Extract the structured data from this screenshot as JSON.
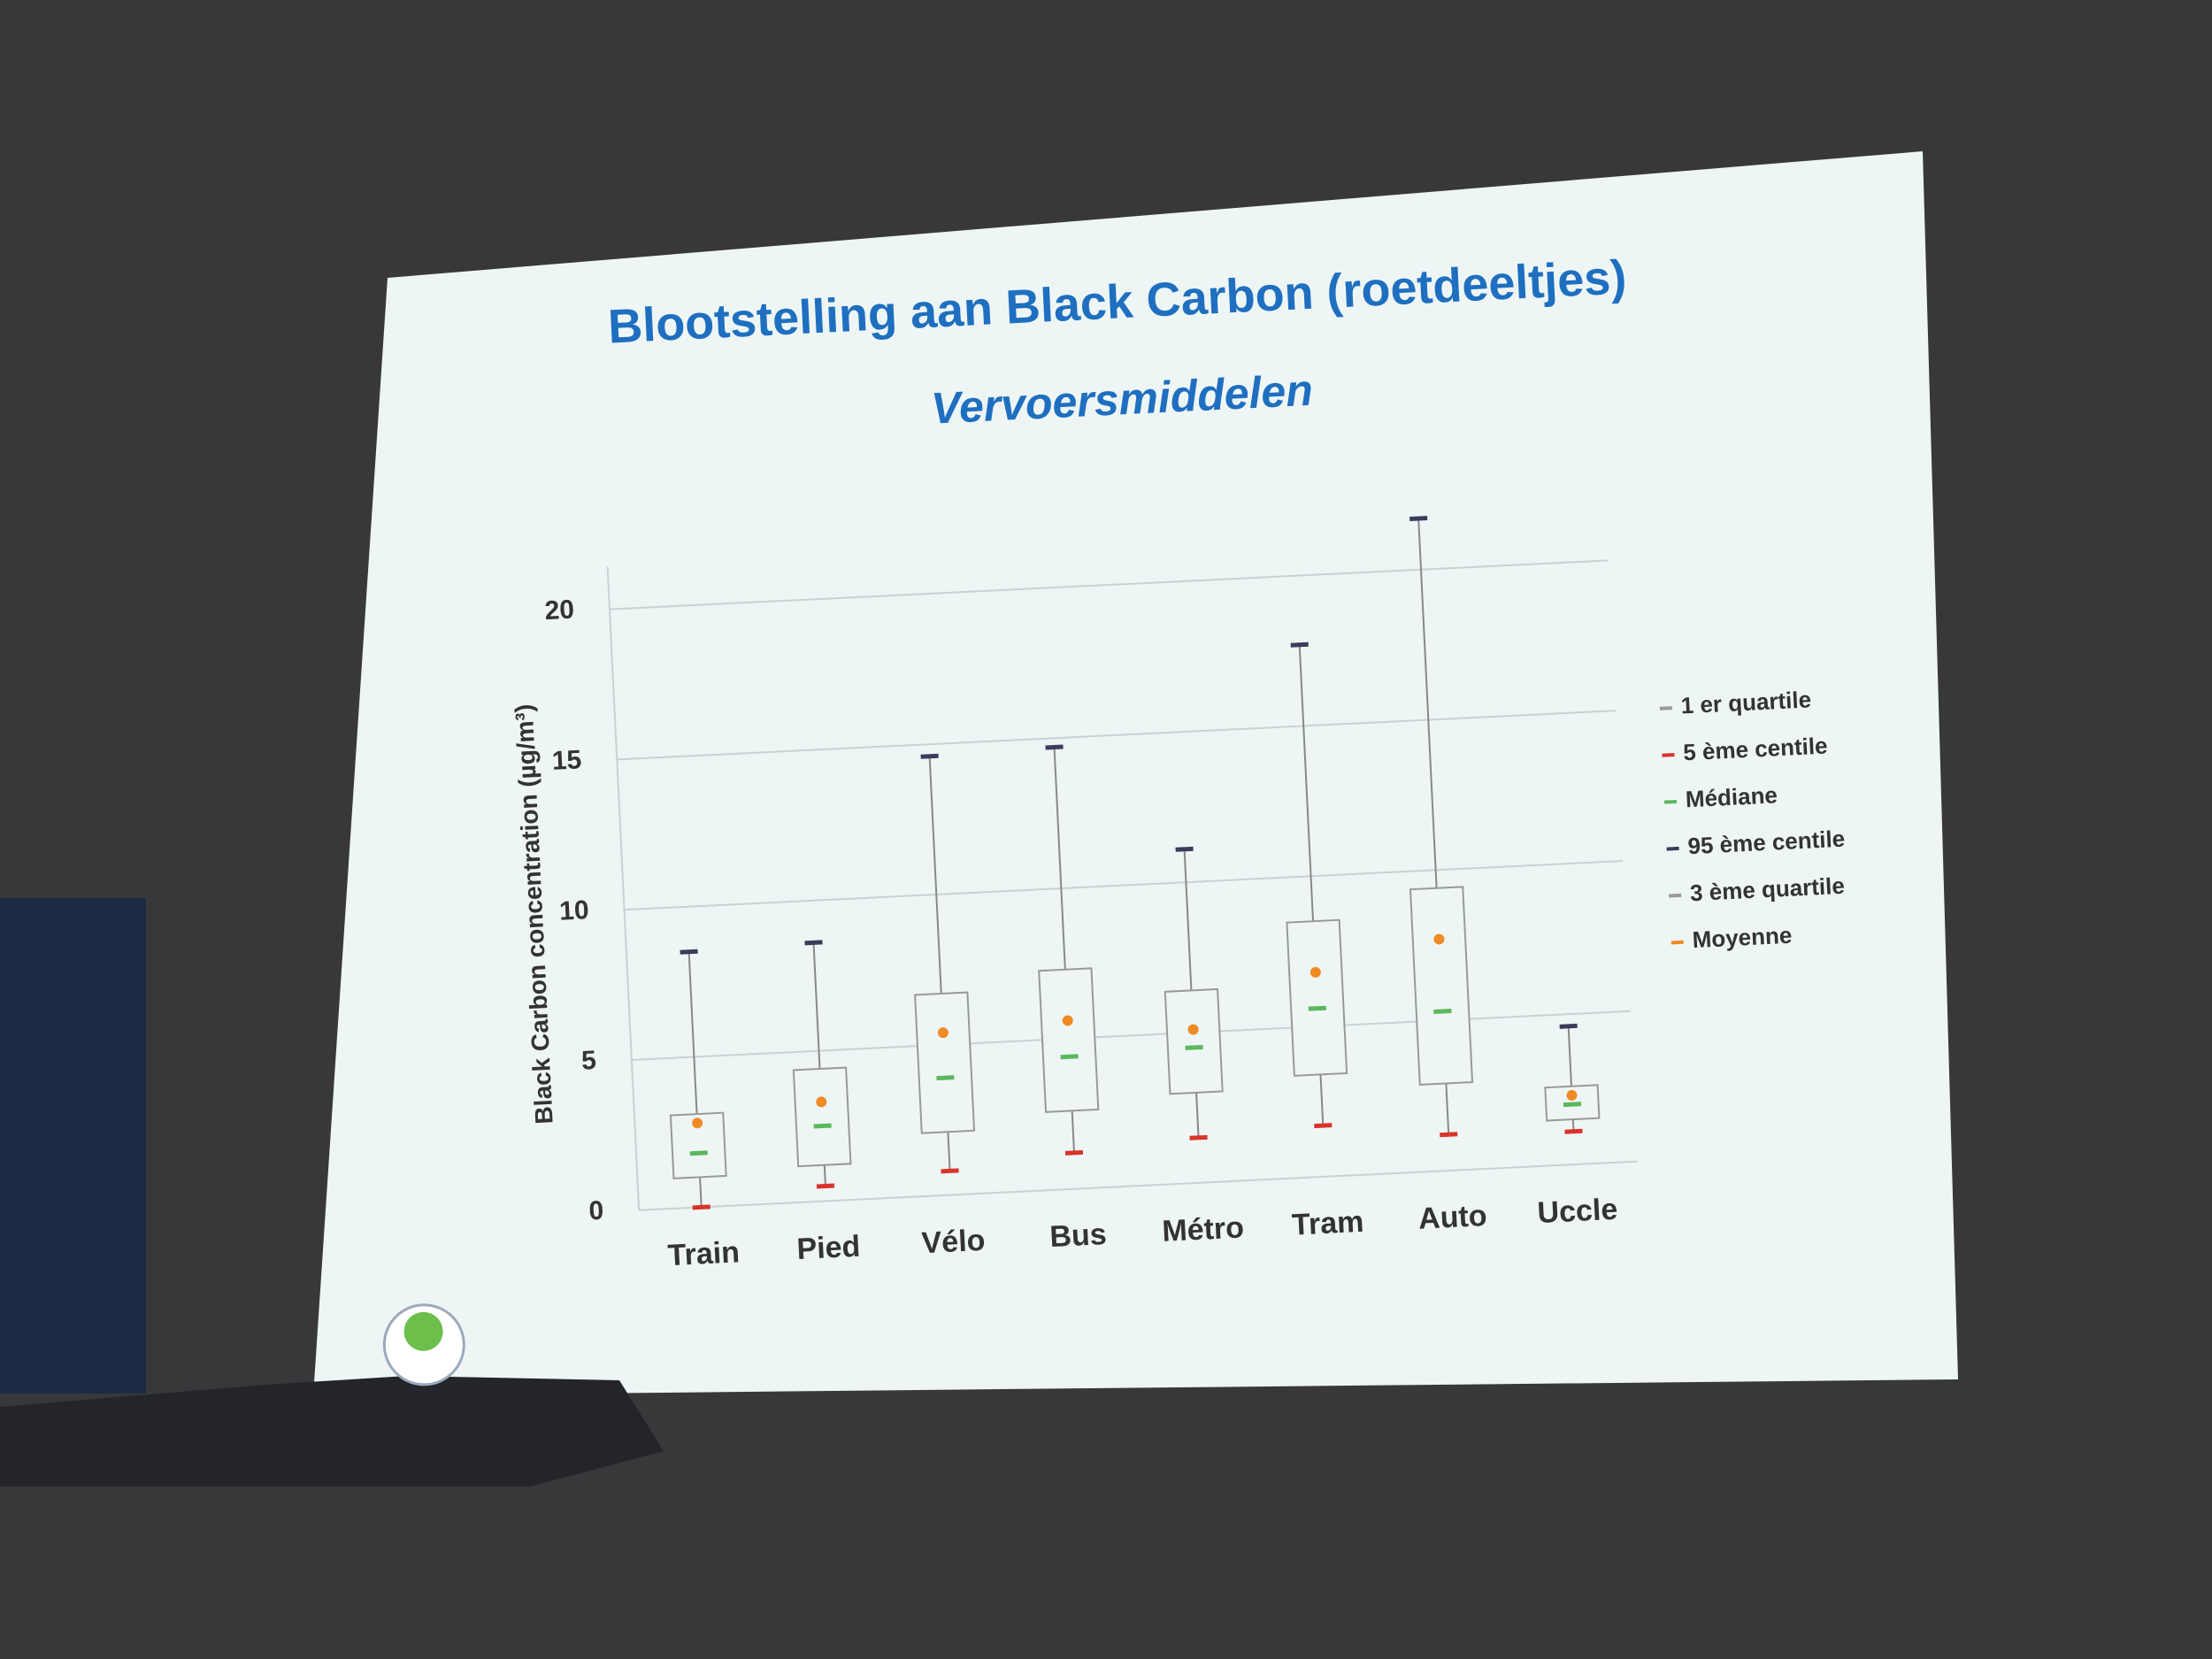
{
  "chart_data": {
    "type": "box",
    "title": "Blootstelling aan Black Carbon (roetdeeltjes)",
    "subtitle": "Vervoersmiddelen",
    "y_label": "Black Carbon concentration (µg/m³)",
    "categories": [
      "Train",
      "Pied",
      "Vélo",
      "Bus",
      "Métro",
      "Tram",
      "Auto",
      "Uccle"
    ],
    "series": [
      {
        "name": "1 er quartile",
        "color": "#9a9a9a",
        "values": [
          1.0,
          1.2,
          2.1,
          2.6,
          3.0,
          3.4,
          2.9,
          1.5
        ]
      },
      {
        "name": "5 ème centile",
        "color": "#d9342b",
        "values": [
          0,
          0.5,
          0.8,
          1.2,
          1.5,
          1.7,
          1.2,
          1.1
        ]
      },
      {
        "name": "Médiane",
        "color": "#5cb85c",
        "values": [
          1.8,
          2.5,
          3.9,
          4.4,
          4.5,
          5.6,
          5.3,
          2.0
        ]
      },
      {
        "name": "95 ème centile",
        "color": "#3b3b5a",
        "values": [
          8.5,
          8.6,
          14.6,
          14.7,
          11.1,
          17.7,
          21.7,
          4.6
        ]
      },
      {
        "name": "3 ème quartile",
        "color": "#9a9a9a",
        "values": [
          3.1,
          4.4,
          6.7,
          7.3,
          6.4,
          8.5,
          9.4,
          2.6
        ]
      },
      {
        "name": "Moyenne",
        "color": "#f08a24",
        "values": [
          2.8,
          3.3,
          5.4,
          5.6,
          5.1,
          6.8,
          7.7,
          2.3
        ]
      }
    ],
    "ylim": [
      0,
      22
    ],
    "yticks": [
      0,
      5,
      10,
      15,
      20
    ],
    "grid": true,
    "legend": "right"
  }
}
